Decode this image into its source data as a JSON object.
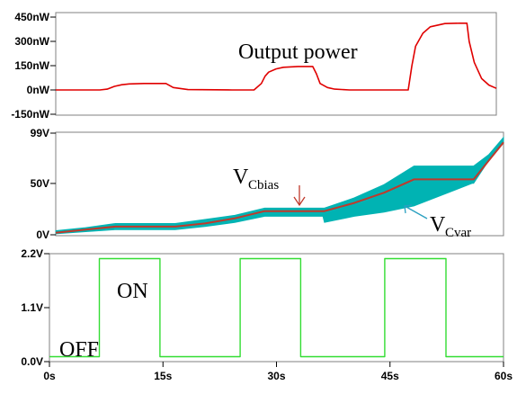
{
  "chart_data": [
    {
      "type": "line",
      "ylim": [
        -150,
        450
      ],
      "y_unit": "nW",
      "y_ticks": [
        "450nW",
        "300nW",
        "150nW",
        "0nW",
        "-150nW"
      ],
      "y_tick_values": [
        450,
        300,
        150,
        0,
        -150
      ],
      "annotation": "Output power",
      "series": [
        {
          "color": "#e00000",
          "x": [
            0,
            6,
            7,
            8,
            9,
            10,
            12,
            13,
            14,
            15,
            16,
            18,
            24,
            27,
            28,
            28.5,
            29,
            30,
            31,
            33,
            35,
            35.5,
            36,
            37,
            38,
            40,
            48,
            48.5,
            49,
            50,
            51,
            53,
            55,
            56,
            56.3,
            57,
            58,
            59,
            60
          ],
          "y": [
            0,
            0,
            5,
            22,
            32,
            37,
            40,
            40,
            40,
            40,
            15,
            2,
            0,
            0,
            40,
            85,
            110,
            130,
            140,
            145,
            145,
            100,
            40,
            15,
            5,
            0,
            0,
            150,
            270,
            350,
            390,
            410,
            412,
            412,
            300,
            170,
            70,
            30,
            10
          ]
        }
      ]
    },
    {
      "type": "area",
      "ylim": [
        0,
        99
      ],
      "y_unit": "V",
      "y_ticks": [
        "99V",
        "50V",
        "0V"
      ],
      "y_tick_values": [
        99,
        50,
        0
      ],
      "annotations": [
        {
          "text": "V",
          "sub": "Cbias"
        },
        {
          "text": "V",
          "sub": "Cvar"
        }
      ],
      "series": [
        {
          "kind": "band",
          "color": "#00b3b3",
          "x": [
            0,
            4,
            8,
            16,
            20,
            24,
            28,
            35.8,
            36,
            40,
            44,
            48,
            55.8,
            56,
            58,
            60
          ],
          "low": [
            1,
            3,
            5,
            5,
            8,
            12,
            18,
            18,
            12,
            18,
            22,
            28,
            50,
            50,
            72,
            90
          ],
          "high": [
            4,
            7,
            11,
            11,
            15,
            19,
            26,
            26,
            26,
            36,
            49,
            67,
            67,
            67,
            78,
            95
          ]
        },
        {
          "kind": "line",
          "color": "#c0392b",
          "x": [
            0,
            4,
            8,
            16,
            20,
            24,
            28,
            36,
            40,
            44,
            48,
            56,
            58,
            60
          ],
          "y": [
            2,
            5,
            8,
            8,
            11,
            16,
            23,
            23,
            31,
            41,
            54,
            54,
            72,
            90
          ]
        }
      ]
    },
    {
      "type": "line",
      "xlim": [
        0,
        60
      ],
      "ylim": [
        0,
        2.2
      ],
      "y_unit": "V",
      "x_ticks": [
        "0s",
        "15s",
        "30s",
        "45s",
        "60s"
      ],
      "x_tick_values": [
        0,
        15,
        30,
        45,
        60
      ],
      "y_ticks": [
        "2.2V",
        "1.1V",
        "0.0V"
      ],
      "y_tick_values": [
        2.2,
        1.1,
        0
      ],
      "annotations": [
        "ON",
        "OFF"
      ],
      "series": [
        {
          "color": "#33dd33",
          "x": [
            0,
            6.6,
            6.6,
            14.6,
            14.6,
            25.2,
            25.2,
            33.2,
            33.2,
            44.3,
            44.3,
            52.4,
            52.4,
            60
          ],
          "y": [
            0.1,
            0.1,
            2.1,
            2.1,
            0.1,
            0.1,
            2.1,
            2.1,
            0.1,
            0.1,
            2.1,
            2.1,
            0.1,
            0.1
          ]
        }
      ]
    }
  ]
}
